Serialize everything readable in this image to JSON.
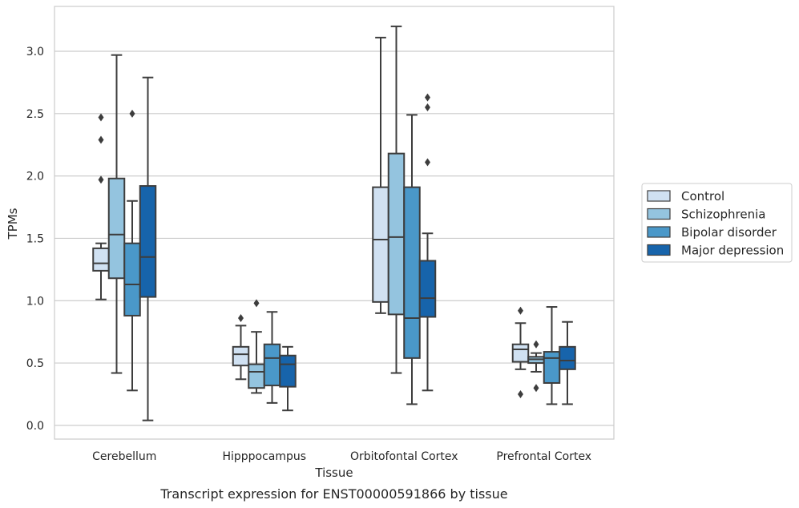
{
  "chart_data": {
    "type": "box",
    "caption": "Transcript expression for ENST00000591866 by tissue",
    "xlabel": "Tissue",
    "ylabel": "TPMs",
    "ylim": [
      -0.11,
      3.36
    ],
    "yticks": [
      0.0,
      0.5,
      1.0,
      1.5,
      2.0,
      2.5,
      3.0
    ],
    "ytick_labels": [
      "0.0",
      "0.5",
      "1.0",
      "1.5",
      "2.0",
      "2.5",
      "3.0"
    ],
    "grid": "horizontal",
    "legend_position": "right",
    "categories": [
      "Cerebellum",
      "Hipppocampus",
      "Orbitofontal Cortex",
      "Prefrontal Cortex"
    ],
    "series": [
      {
        "name": "Control",
        "color": "#d0e1f2",
        "boxes": [
          {
            "whisker_low": 1.01,
            "q1": 1.24,
            "median": 1.3,
            "q3": 1.42,
            "whisker_high": 1.46,
            "outliers": [
              1.97,
              2.29,
              2.47
            ]
          },
          {
            "whisker_low": 0.37,
            "q1": 0.48,
            "median": 0.57,
            "q3": 0.63,
            "whisker_high": 0.8,
            "outliers": [
              0.86
            ]
          },
          {
            "whisker_low": 0.9,
            "q1": 0.99,
            "median": 1.49,
            "q3": 1.91,
            "whisker_high": 3.11,
            "outliers": []
          },
          {
            "whisker_low": 0.45,
            "q1": 0.51,
            "median": 0.61,
            "q3": 0.65,
            "whisker_high": 0.82,
            "outliers": [
              0.92,
              0.25
            ]
          }
        ]
      },
      {
        "name": "Schizophrenia",
        "color": "#94c4df",
        "boxes": [
          {
            "whisker_low": 0.42,
            "q1": 1.18,
            "median": 1.53,
            "q3": 1.98,
            "whisker_high": 2.97,
            "outliers": []
          },
          {
            "whisker_low": 0.26,
            "q1": 0.3,
            "median": 0.43,
            "q3": 0.49,
            "whisker_high": 0.75,
            "outliers": [
              0.98
            ]
          },
          {
            "whisker_low": 0.42,
            "q1": 0.89,
            "median": 1.51,
            "q3": 2.18,
            "whisker_high": 3.2,
            "outliers": []
          },
          {
            "whisker_low": 0.43,
            "q1": 0.5,
            "median": 0.53,
            "q3": 0.55,
            "whisker_high": 0.58,
            "outliers": [
              0.65,
              0.3
            ]
          }
        ]
      },
      {
        "name": "Bipolar disorder",
        "color": "#4a98c9",
        "boxes": [
          {
            "whisker_low": 0.28,
            "q1": 0.88,
            "median": 1.13,
            "q3": 1.46,
            "whisker_high": 1.8,
            "outliers": [
              2.5
            ]
          },
          {
            "whisker_low": 0.18,
            "q1": 0.32,
            "median": 0.54,
            "q3": 0.65,
            "whisker_high": 0.91,
            "outliers": []
          },
          {
            "whisker_low": 0.17,
            "q1": 0.54,
            "median": 0.86,
            "q3": 1.91,
            "whisker_high": 2.49,
            "outliers": []
          },
          {
            "whisker_low": 0.17,
            "q1": 0.34,
            "median": 0.54,
            "q3": 0.59,
            "whisker_high": 0.95,
            "outliers": []
          }
        ]
      },
      {
        "name": "Major depression",
        "color": "#1764ab",
        "boxes": [
          {
            "whisker_low": 0.04,
            "q1": 1.03,
            "median": 1.35,
            "q3": 1.92,
            "whisker_high": 2.79,
            "outliers": []
          },
          {
            "whisker_low": 0.12,
            "q1": 0.31,
            "median": 0.49,
            "q3": 0.56,
            "whisker_high": 0.63,
            "outliers": []
          },
          {
            "whisker_low": 0.28,
            "q1": 0.87,
            "median": 1.02,
            "q3": 1.32,
            "whisker_high": 1.54,
            "outliers": [
              2.11,
              2.55,
              2.63
            ]
          },
          {
            "whisker_low": 0.17,
            "q1": 0.45,
            "median": 0.52,
            "q3": 0.63,
            "whisker_high": 0.83,
            "outliers": []
          }
        ]
      }
    ]
  }
}
